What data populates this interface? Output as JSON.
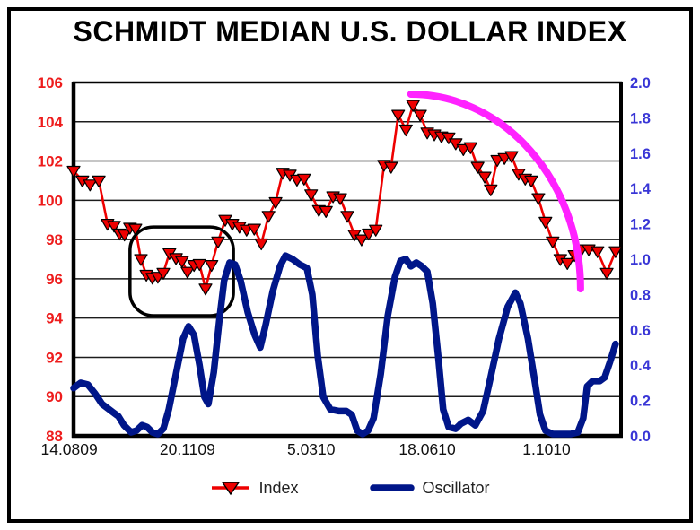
{
  "window": {
    "title": "SCHMIDT MEDIAN U.S. DOLLAR INDEX"
  },
  "legend": {
    "items": [
      {
        "label": "Index"
      },
      {
        "label": "Oscillator"
      }
    ]
  },
  "chart_data": {
    "type": "line",
    "title": "SCHMIDT MEDIAN U.S. DOLLAR INDEX",
    "x_tick_labels": [
      "14.0809",
      "20.1109",
      "5.0310",
      "18.0610",
      "1.1010"
    ],
    "x_tick_pos": [
      -0.008,
      0.208,
      0.434,
      0.646,
      0.864
    ],
    "left_axis": {
      "min": 88,
      "max": 106,
      "tick_step": 2,
      "color": "#ee1c1c",
      "series": "Index",
      "tick_labels": [
        "106",
        "104",
        "102",
        "100",
        "98",
        "96",
        "94",
        "92",
        "90",
        "88"
      ]
    },
    "right_axis": {
      "min": 0.0,
      "max": 2.0,
      "tick_step": 0.2,
      "color": "#3936d6",
      "series": "Oscillator",
      "tick_labels": [
        "2.0",
        "1.8",
        "1.6",
        "1.4",
        "1.2",
        "1.0",
        "0.8",
        "0.6",
        "0.4",
        "0.2",
        "0.0"
      ]
    },
    "grid": "horizontal",
    "legend_position": "bottom",
    "series": [
      {
        "name": "Index",
        "axis": "left",
        "color": "#ee0000",
        "marker": "triangle-down",
        "marker_outline": "#000000",
        "line_width": 2.6,
        "points": [
          [
            0.0,
            101.5
          ],
          [
            0.016,
            101.0
          ],
          [
            0.03,
            100.8
          ],
          [
            0.046,
            101.0
          ],
          [
            0.062,
            98.8
          ],
          [
            0.074,
            98.7
          ],
          [
            0.084,
            98.3
          ],
          [
            0.093,
            98.25
          ],
          [
            0.103,
            98.6
          ],
          [
            0.113,
            98.55
          ],
          [
            0.123,
            97.0
          ],
          [
            0.133,
            96.2
          ],
          [
            0.144,
            96.05
          ],
          [
            0.154,
            96.1
          ],
          [
            0.164,
            96.3
          ],
          [
            0.175,
            97.3
          ],
          [
            0.187,
            97.05
          ],
          [
            0.198,
            96.9
          ],
          [
            0.208,
            96.35
          ],
          [
            0.22,
            96.7
          ],
          [
            0.23,
            96.75
          ],
          [
            0.241,
            95.5
          ],
          [
            0.252,
            96.7
          ],
          [
            0.264,
            97.9
          ],
          [
            0.277,
            99.0
          ],
          [
            0.29,
            98.8
          ],
          [
            0.303,
            98.65
          ],
          [
            0.316,
            98.5
          ],
          [
            0.33,
            98.55
          ],
          [
            0.343,
            97.8
          ],
          [
            0.356,
            99.2
          ],
          [
            0.369,
            99.9
          ],
          [
            0.382,
            101.4
          ],
          [
            0.395,
            101.3
          ],
          [
            0.408,
            101.05
          ],
          [
            0.421,
            101.1
          ],
          [
            0.434,
            100.3
          ],
          [
            0.448,
            99.5
          ],
          [
            0.461,
            99.45
          ],
          [
            0.474,
            100.2
          ],
          [
            0.487,
            100.1
          ],
          [
            0.5,
            99.2
          ],
          [
            0.513,
            98.25
          ],
          [
            0.526,
            98.0
          ],
          [
            0.539,
            98.3
          ],
          [
            0.552,
            98.5
          ],
          [
            0.567,
            101.8
          ],
          [
            0.58,
            101.7
          ],
          [
            0.593,
            104.35
          ],
          [
            0.607,
            103.6
          ],
          [
            0.62,
            104.85
          ],
          [
            0.633,
            104.35
          ],
          [
            0.646,
            103.45
          ],
          [
            0.659,
            103.35
          ],
          [
            0.672,
            103.25
          ],
          [
            0.685,
            103.2
          ],
          [
            0.698,
            102.9
          ],
          [
            0.712,
            102.6
          ],
          [
            0.725,
            102.7
          ],
          [
            0.738,
            101.7
          ],
          [
            0.751,
            101.2
          ],
          [
            0.762,
            100.55
          ],
          [
            0.774,
            102.05
          ],
          [
            0.787,
            102.15
          ],
          [
            0.8,
            102.25
          ],
          [
            0.813,
            101.35
          ],
          [
            0.825,
            101.1
          ],
          [
            0.836,
            101.0
          ],
          [
            0.849,
            100.1
          ],
          [
            0.862,
            98.9
          ],
          [
            0.875,
            97.9
          ],
          [
            0.889,
            97.0
          ],
          [
            0.902,
            96.8
          ],
          [
            0.915,
            97.2
          ],
          [
            0.928,
            97.5
          ],
          [
            0.941,
            97.5
          ],
          [
            0.957,
            97.4
          ],
          [
            0.974,
            96.3
          ],
          [
            0.99,
            97.4
          ]
        ]
      },
      {
        "name": "Oscillator",
        "axis": "right",
        "color": "#001689",
        "marker": "none",
        "line_width": 7.5,
        "points": [
          [
            0.0,
            0.27
          ],
          [
            0.013,
            0.3
          ],
          [
            0.026,
            0.29
          ],
          [
            0.039,
            0.24
          ],
          [
            0.052,
            0.18
          ],
          [
            0.069,
            0.14
          ],
          [
            0.082,
            0.11
          ],
          [
            0.092,
            0.06
          ],
          [
            0.105,
            0.02
          ],
          [
            0.115,
            0.03
          ],
          [
            0.125,
            0.06
          ],
          [
            0.134,
            0.05
          ],
          [
            0.144,
            0.02
          ],
          [
            0.154,
            0.01
          ],
          [
            0.164,
            0.04
          ],
          [
            0.174,
            0.15
          ],
          [
            0.187,
            0.35
          ],
          [
            0.2,
            0.55
          ],
          [
            0.21,
            0.62
          ],
          [
            0.22,
            0.57
          ],
          [
            0.23,
            0.4
          ],
          [
            0.239,
            0.22
          ],
          [
            0.246,
            0.18
          ],
          [
            0.256,
            0.36
          ],
          [
            0.266,
            0.65
          ],
          [
            0.275,
            0.88
          ],
          [
            0.285,
            0.98
          ],
          [
            0.295,
            0.97
          ],
          [
            0.305,
            0.88
          ],
          [
            0.318,
            0.7
          ],
          [
            0.331,
            0.57
          ],
          [
            0.341,
            0.5
          ],
          [
            0.351,
            0.63
          ],
          [
            0.364,
            0.82
          ],
          [
            0.377,
            0.96
          ],
          [
            0.387,
            1.02
          ],
          [
            0.4,
            1.0
          ],
          [
            0.413,
            0.97
          ],
          [
            0.426,
            0.95
          ],
          [
            0.436,
            0.8
          ],
          [
            0.446,
            0.45
          ],
          [
            0.456,
            0.22
          ],
          [
            0.469,
            0.15
          ],
          [
            0.485,
            0.14
          ],
          [
            0.498,
            0.14
          ],
          [
            0.508,
            0.12
          ],
          [
            0.518,
            0.03
          ],
          [
            0.528,
            0.01
          ],
          [
            0.538,
            0.03
          ],
          [
            0.548,
            0.1
          ],
          [
            0.561,
            0.35
          ],
          [
            0.574,
            0.68
          ],
          [
            0.587,
            0.9
          ],
          [
            0.597,
            0.99
          ],
          [
            0.607,
            1.0
          ],
          [
            0.616,
            0.96
          ],
          [
            0.626,
            0.98
          ],
          [
            0.636,
            0.96
          ],
          [
            0.646,
            0.93
          ],
          [
            0.656,
            0.75
          ],
          [
            0.666,
            0.45
          ],
          [
            0.675,
            0.15
          ],
          [
            0.685,
            0.05
          ],
          [
            0.698,
            0.04
          ],
          [
            0.708,
            0.07
          ],
          [
            0.721,
            0.09
          ],
          [
            0.734,
            0.06
          ],
          [
            0.748,
            0.14
          ],
          [
            0.761,
            0.32
          ],
          [
            0.777,
            0.55
          ],
          [
            0.793,
            0.73
          ],
          [
            0.807,
            0.81
          ],
          [
            0.816,
            0.75
          ],
          [
            0.83,
            0.55
          ],
          [
            0.843,
            0.3
          ],
          [
            0.852,
            0.12
          ],
          [
            0.862,
            0.03
          ],
          [
            0.875,
            0.01
          ],
          [
            0.892,
            0.01
          ],
          [
            0.908,
            0.01
          ],
          [
            0.921,
            0.02
          ],
          [
            0.931,
            0.1
          ],
          [
            0.938,
            0.28
          ],
          [
            0.948,
            0.31
          ],
          [
            0.961,
            0.31
          ],
          [
            0.97,
            0.33
          ],
          [
            0.98,
            0.42
          ],
          [
            0.99,
            0.52
          ]
        ]
      }
    ],
    "annotations": [
      {
        "type": "rounded_box",
        "x": 0.103,
        "y": 0.409,
        "w": 0.189,
        "h": 0.251,
        "stroke": "#000000",
        "stroke_width": 3.5,
        "corner_radius": 26
      },
      {
        "type": "ellipse_arc",
        "x1": 0.616,
        "y1": 0.033,
        "x2": 0.926,
        "y2": 0.584,
        "stroke": "#ff22ff",
        "stroke_width": 8
      }
    ]
  }
}
